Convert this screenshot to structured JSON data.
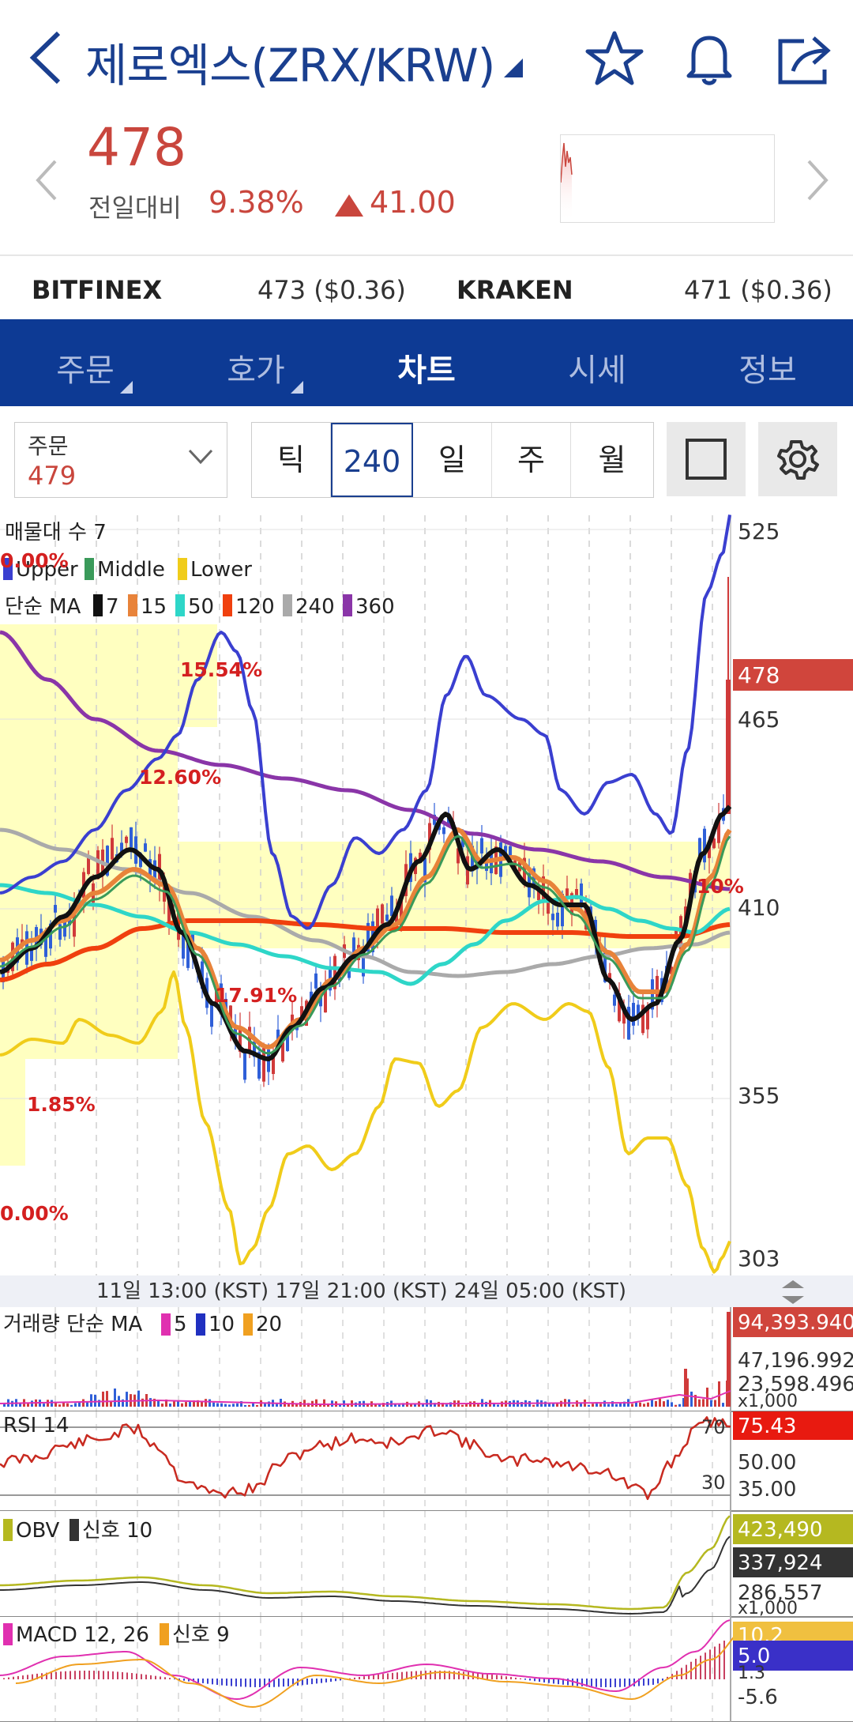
{
  "header": {
    "title": "제로엑스(ZRX/KRW)",
    "icons": [
      "back-arrow-icon",
      "dropdown-caret-icon",
      "star-icon",
      "bell-icon",
      "share-icon"
    ]
  },
  "quote": {
    "price": "478",
    "compare_label": "전일대비",
    "change_pct": "9.38%",
    "change_val": "41.00",
    "up_color": "#c9463d"
  },
  "exchanges": [
    {
      "name": "BITFINEX",
      "value": "473 ($0.36)"
    },
    {
      "name": "KRAKEN",
      "value": "471 ($0.36)"
    }
  ],
  "tabs": [
    {
      "label": "주문",
      "active": false
    },
    {
      "label": "호가",
      "active": false
    },
    {
      "label": "차트",
      "active": true
    },
    {
      "label": "시세",
      "active": false
    },
    {
      "label": "정보",
      "active": false
    }
  ],
  "controls": {
    "order_label": "주문",
    "order_value": "479",
    "periods": [
      "틱",
      "240분",
      "일",
      "주",
      "월"
    ],
    "selected_period": "240분"
  },
  "chart": {
    "legend_volume_profile": "매물대 수 7",
    "legend_bb": [
      "Upper",
      "Middle",
      "Lower"
    ],
    "legend_ma_label": "단순 MA",
    "legend_ma": [
      "7",
      "15",
      "50",
      "120",
      "240",
      "360"
    ],
    "profile_labels": [
      "0.00%",
      "15.54%",
      "12.60%",
      "17.91%",
      "1.85%",
      "0.00%",
      "10%"
    ],
    "y_ticks": [
      "525",
      "465",
      "410",
      "355",
      "303"
    ],
    "current_price_tag": "478",
    "time_axis": "11일 13:00 (KST) 17일 21:00 (KST) 24일 05:00 (KST)",
    "volume_label": "거래량 단순 MA",
    "volume_ma": [
      "5",
      "10",
      "20"
    ],
    "volume_ticks": [
      "94,393.940",
      "47,196.992",
      "23,598.496",
      "x1,000"
    ],
    "rsi_label": "RSI 14",
    "rsi_ticks": [
      "75.43",
      "50.00",
      "35.00",
      "70",
      "30"
    ],
    "obv_label": "OBV",
    "obv_signal": "신호 10",
    "obv_ticks": [
      "423,490",
      "337,924",
      "286,557",
      "x1,000"
    ],
    "macd_label": "MACD 12, 26",
    "macd_signal": "신호 9",
    "macd_ticks": [
      "10.2",
      "5.0",
      "1.3",
      "-5.6"
    ],
    "colors": {
      "upper": "#3a3fd0",
      "middle": "#3a9a5a",
      "lower": "#f0cc1a",
      "ma7": "#111111",
      "ma15": "#e8833a",
      "ma50": "#2ed6c8",
      "ma120": "#f0400e",
      "ma240": "#aaaaaa",
      "ma360": "#8a35a8",
      "candle_up": "#d03a3a",
      "candle_down": "#2f5fd8"
    }
  }
}
